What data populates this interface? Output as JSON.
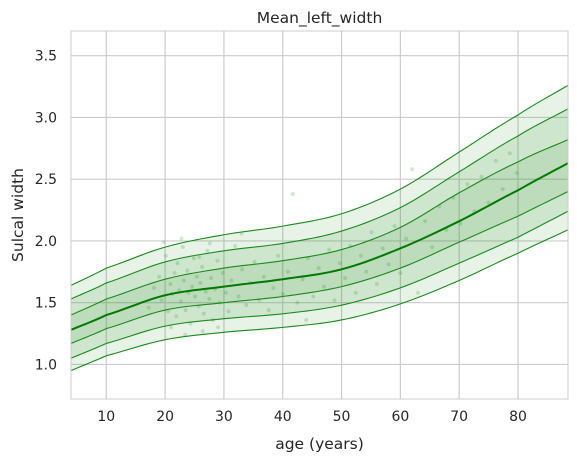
{
  "chart_data": {
    "type": "line",
    "title": "Mean_left_width",
    "xlabel": "age (years)",
    "ylabel": "Sulcal width",
    "xlim": [
      4,
      88.5
    ],
    "ylim": [
      0.72,
      3.7
    ],
    "xticks": [
      10,
      20,
      30,
      40,
      50,
      60,
      70,
      80
    ],
    "yticks": [
      1.0,
      1.5,
      2.0,
      2.5,
      3.0,
      3.5
    ],
    "ytick_labels": [
      "1.0",
      "1.5",
      "2.0",
      "2.5",
      "3.0",
      "3.5"
    ],
    "grid": true,
    "colors": {
      "line": "#1a8a1a",
      "median": "#007a00",
      "band": "#1a8a1a",
      "points": "#2e9a2e",
      "grid": "#cccccc",
      "background": "#ffffff"
    },
    "series": [
      {
        "role": "upper-outer",
        "x": [
          4,
          10,
          20,
          30,
          40,
          50,
          60,
          70,
          80,
          88.5
        ],
        "y": [
          1.64,
          1.78,
          1.95,
          2.05,
          2.12,
          2.22,
          2.42,
          2.72,
          3.02,
          3.26
        ]
      },
      {
        "role": "upper-inner",
        "x": [
          4,
          10,
          20,
          30,
          40,
          50,
          60,
          70,
          80,
          88.5
        ],
        "y": [
          1.53,
          1.66,
          1.83,
          1.92,
          1.98,
          2.08,
          2.27,
          2.56,
          2.85,
          3.07
        ]
      },
      {
        "role": "upper-mid",
        "x": [
          4,
          10,
          20,
          30,
          40,
          50,
          60,
          70,
          80,
          88.5
        ],
        "y": [
          1.4,
          1.53,
          1.69,
          1.78,
          1.84,
          1.93,
          2.11,
          2.39,
          2.64,
          2.82
        ]
      },
      {
        "role": "median",
        "x": [
          4,
          10,
          20,
          30,
          40,
          50,
          60,
          70,
          80,
          88.5
        ],
        "y": [
          1.28,
          1.4,
          1.56,
          1.63,
          1.69,
          1.77,
          1.94,
          2.16,
          2.41,
          2.63
        ]
      },
      {
        "role": "lower-mid",
        "x": [
          4,
          10,
          20,
          30,
          40,
          50,
          60,
          70,
          80,
          88.5
        ],
        "y": [
          1.17,
          1.29,
          1.44,
          1.5,
          1.55,
          1.63,
          1.78,
          1.99,
          2.2,
          2.4
        ]
      },
      {
        "role": "lower-inner",
        "x": [
          4,
          10,
          20,
          30,
          40,
          50,
          60,
          70,
          80,
          88.5
        ],
        "y": [
          1.05,
          1.17,
          1.31,
          1.37,
          1.41,
          1.48,
          1.62,
          1.82,
          2.03,
          2.24
        ]
      },
      {
        "role": "lower-outer",
        "x": [
          4,
          10,
          20,
          30,
          40,
          50,
          60,
          70,
          80,
          88.5
        ],
        "y": [
          0.95,
          1.07,
          1.2,
          1.26,
          1.3,
          1.36,
          1.49,
          1.68,
          1.9,
          2.09
        ]
      }
    ],
    "scatter": {
      "points": [
        [
          17.2,
          1.46
        ],
        [
          18.1,
          1.62
        ],
        [
          19.0,
          1.71
        ],
        [
          19.4,
          1.52
        ],
        [
          20.1,
          1.88
        ],
        [
          20.5,
          1.43
        ],
        [
          20.9,
          1.65
        ],
        [
          21.2,
          1.57
        ],
        [
          21.6,
          1.74
        ],
        [
          21.9,
          1.39
        ],
        [
          22.1,
          1.82
        ],
        [
          22.4,
          1.6
        ],
        [
          22.7,
          1.51
        ],
        [
          23.0,
          1.95
        ],
        [
          23.2,
          1.68
        ],
        [
          23.5,
          1.44
        ],
        [
          23.8,
          1.76
        ],
        [
          24.0,
          1.58
        ],
        [
          24.3,
          1.33
        ],
        [
          24.6,
          1.63
        ],
        [
          24.9,
          1.86
        ],
        [
          25.1,
          1.55
        ],
        [
          25.4,
          1.71
        ],
        [
          25.7,
          1.47
        ],
        [
          26.0,
          1.66
        ],
        [
          26.3,
          1.79
        ],
        [
          26.6,
          1.41
        ],
        [
          26.9,
          1.59
        ],
        [
          27.2,
          1.92
        ],
        [
          27.5,
          1.53
        ],
        [
          27.8,
          1.7
        ],
        [
          28.1,
          1.36
        ],
        [
          28.5,
          1.61
        ],
        [
          28.9,
          1.84
        ],
        [
          29.3,
          1.5
        ],
        [
          29.8,
          1.74
        ],
        [
          30.3,
          1.58
        ],
        [
          30.8,
          1.43
        ],
        [
          31.3,
          1.68
        ],
        [
          31.9,
          1.96
        ],
        [
          32.5,
          1.55
        ],
        [
          33.1,
          1.77
        ],
        [
          33.8,
          1.48
        ],
        [
          34.5,
          1.66
        ],
        [
          35.2,
          1.83
        ],
        [
          36.0,
          1.52
        ],
        [
          36.8,
          1.71
        ],
        [
          37.6,
          1.44
        ],
        [
          38.4,
          1.62
        ],
        [
          39.2,
          1.88
        ],
        [
          40.0,
          1.57
        ],
        [
          40.9,
          1.75
        ],
        [
          41.7,
          2.38
        ],
        [
          42.5,
          1.5
        ],
        [
          43.4,
          1.69
        ],
        [
          44.3,
          1.86
        ],
        [
          45.2,
          1.55
        ],
        [
          46.1,
          1.78
        ],
        [
          47.0,
          1.63
        ],
        [
          47.9,
          1.93
        ],
        [
          48.8,
          1.52
        ],
        [
          49.7,
          1.82
        ],
        [
          50.6,
          1.7
        ],
        [
          51.5,
          1.96
        ],
        [
          52.4,
          1.58
        ],
        [
          53.3,
          1.88
        ],
        [
          54.2,
          1.75
        ],
        [
          55.1,
          2.07
        ],
        [
          56.0,
          1.65
        ],
        [
          57.0,
          1.94
        ],
        [
          58.0,
          1.81
        ],
        [
          59.0,
          2.12
        ],
        [
          60.0,
          1.74
        ],
        [
          61.0,
          2.02
        ],
        [
          62.0,
          2.58
        ],
        [
          63.0,
          1.58
        ],
        [
          64.2,
          2.16
        ],
        [
          65.4,
          1.95
        ],
        [
          66.6,
          2.28
        ],
        [
          67.8,
          2.09
        ],
        [
          69.0,
          2.35
        ],
        [
          70.2,
          2.14
        ],
        [
          71.4,
          2.46
        ],
        [
          72.6,
          2.24
        ],
        [
          73.8,
          2.52
        ],
        [
          75.0,
          2.31
        ],
        [
          76.2,
          2.65
        ],
        [
          77.4,
          2.42
        ],
        [
          78.6,
          2.71
        ],
        [
          79.8,
          2.55
        ],
        [
          21.0,
          1.3
        ],
        [
          23.4,
          1.24
        ],
        [
          25.8,
          1.87
        ],
        [
          27.6,
          1.98
        ],
        [
          19.8,
          1.99
        ],
        [
          22.8,
          2.02
        ],
        [
          26.4,
          1.27
        ],
        [
          29.0,
          1.3
        ],
        [
          33.0,
          2.06
        ],
        [
          44.0,
          1.36
        ]
      ]
    }
  }
}
